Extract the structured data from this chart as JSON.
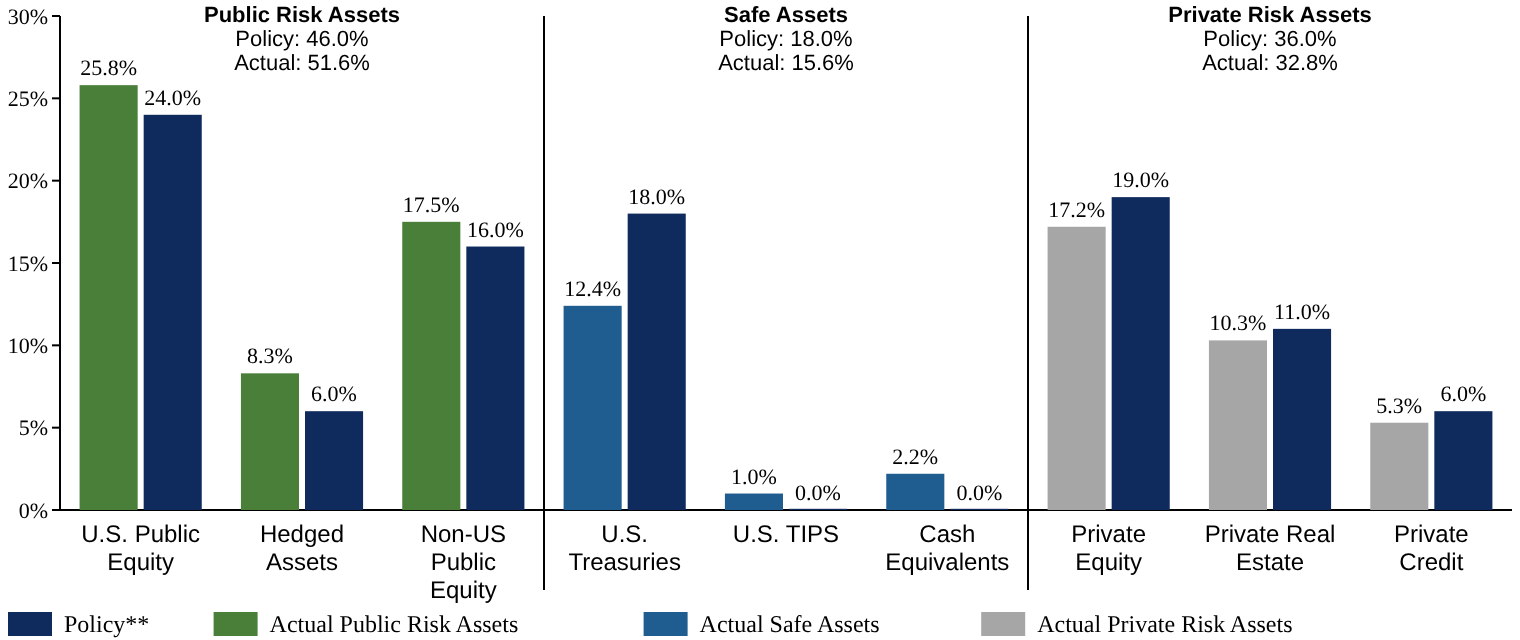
{
  "chart_data": {
    "type": "bar",
    "categories": [
      "U.S. Public Equity",
      "Hedged Assets",
      "Non-US Public Equity",
      "U.S. Treasuries",
      "U.S. TIPS",
      "Cash Equivalents",
      "Private Equity",
      "Private Real Estate",
      "Private Credit"
    ],
    "series": [
      {
        "name": "Policy**",
        "color": "#0f2a5c",
        "values": [
          24.0,
          6.0,
          16.0,
          18.0,
          0.0,
          0.0,
          19.0,
          11.0,
          6.0
        ],
        "value_labels": [
          "24.0%",
          "6.0%",
          "16.0%",
          "18.0%",
          "0.0%",
          "0.0%",
          "19.0%",
          "11.0%",
          "6.0%"
        ]
      },
      {
        "name": "Actual Public Risk Assets",
        "color": "#4a7f3a",
        "values": [
          25.8,
          8.3,
          17.5,
          null,
          null,
          null,
          null,
          null,
          null
        ],
        "value_labels": [
          "25.8%",
          "8.3%",
          "17.5%",
          null,
          null,
          null,
          null,
          null,
          null
        ]
      },
      {
        "name": "Actual Safe Assets",
        "color": "#1f5c8f",
        "values": [
          null,
          null,
          null,
          12.4,
          1.0,
          2.2,
          null,
          null,
          null
        ],
        "value_labels": [
          null,
          null,
          null,
          "12.4%",
          "1.0%",
          "2.2%",
          null,
          null,
          null
        ]
      },
      {
        "name": "Actual Private Risk Assets",
        "color": "#a6a6a6",
        "values": [
          null,
          null,
          null,
          null,
          null,
          null,
          17.2,
          10.3,
          5.3
        ],
        "value_labels": [
          null,
          null,
          null,
          null,
          null,
          null,
          "17.2%",
          "10.3%",
          "5.3%"
        ]
      }
    ],
    "ylim": [
      0,
      30
    ],
    "yticks": [
      {
        "value": 0,
        "label": "0%"
      },
      {
        "value": 5,
        "label": "5%"
      },
      {
        "value": 10,
        "label": "10%"
      },
      {
        "value": 15,
        "label": "15%"
      },
      {
        "value": 20,
        "label": "20%"
      },
      {
        "value": 25,
        "label": "25%"
      },
      {
        "value": 30,
        "label": "30%"
      }
    ],
    "annotations": [
      "Public Risk Assets\nPolicy: 46.0%\nActual: 51.6%",
      "Safe Assets\nPolicy: 18.0%\nActual: 15.6%",
      "Private Risk Assets\nPolicy: 36.0%\nActual: 32.8%"
    ],
    "legend": "bottom",
    "grid": false
  }
}
